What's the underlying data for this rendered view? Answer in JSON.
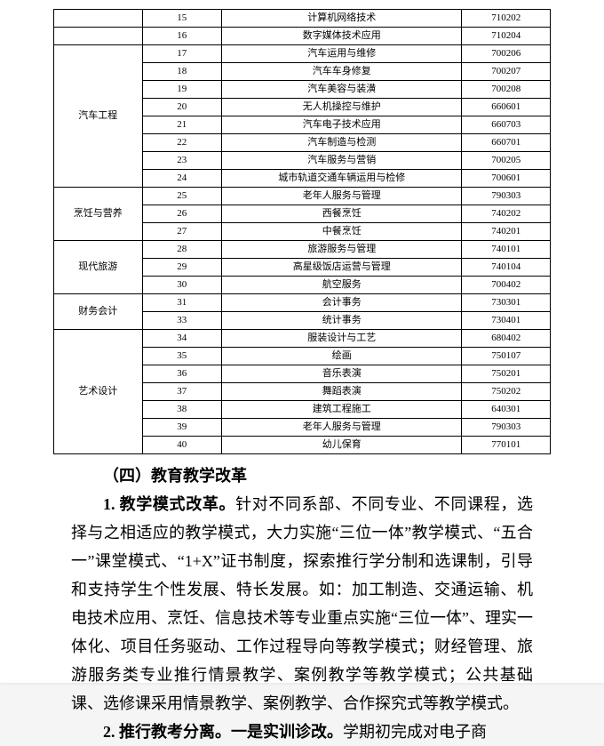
{
  "table": {
    "columns": [
      "category",
      "index",
      "name",
      "code"
    ],
    "cell_fontsize": 11,
    "border_color": "#000000",
    "background_color": "#ffffff",
    "rows": [
      {
        "cat": "",
        "idx": "15",
        "name": "计算机网络技术",
        "code": "710202"
      },
      {
        "cat": "",
        "idx": "16",
        "name": "数字媒体技术应用",
        "code": "710204"
      },
      {
        "cat": "汽车工程",
        "span": 8,
        "idx": "17",
        "name": "汽车运用与维修",
        "code": "700206"
      },
      {
        "cat": null,
        "idx": "18",
        "name": "汽车车身修复",
        "code": "700207"
      },
      {
        "cat": null,
        "idx": "19",
        "name": "汽车美容与装潢",
        "code": "700208"
      },
      {
        "cat": null,
        "idx": "20",
        "name": "无人机操控与维护",
        "code": "660601"
      },
      {
        "cat": null,
        "idx": "21",
        "name": "汽车电子技术应用",
        "code": "660703"
      },
      {
        "cat": null,
        "idx": "22",
        "name": "汽车制造与检测",
        "code": "660701"
      },
      {
        "cat": null,
        "idx": "23",
        "name": "汽车服务与营销",
        "code": "700205"
      },
      {
        "cat": null,
        "idx": "24",
        "name": "城市轨道交通车辆运用与检修",
        "code": "700601"
      },
      {
        "cat": "烹饪与营养",
        "span": 3,
        "idx": "25",
        "name": "老年人服务与管理",
        "code": "790303"
      },
      {
        "cat": null,
        "idx": "26",
        "name": "西餐烹饪",
        "code": "740202"
      },
      {
        "cat": null,
        "idx": "27",
        "name": "中餐烹饪",
        "code": "740201"
      },
      {
        "cat": "现代旅游",
        "span": 3,
        "idx": "28",
        "name": "旅游服务与管理",
        "code": "740101"
      },
      {
        "cat": null,
        "idx": "29",
        "name": "高星级饭店运营与管理",
        "code": "740104"
      },
      {
        "cat": null,
        "idx": "30",
        "name": "航空服务",
        "code": "700402"
      },
      {
        "cat": "财务会计",
        "span": 2,
        "idx": "31",
        "name": "会计事务",
        "code": "730301"
      },
      {
        "cat": null,
        "idx": "33",
        "name": "统计事务",
        "code": "730401"
      },
      {
        "cat": "艺术设计",
        "span": 7,
        "idx": "34",
        "name": "服装设计与工艺",
        "code": "680402"
      },
      {
        "cat": null,
        "idx": "35",
        "name": "绘画",
        "code": "750107"
      },
      {
        "cat": null,
        "idx": "36",
        "name": "音乐表演",
        "code": "750201"
      },
      {
        "cat": null,
        "idx": "37",
        "name": "舞蹈表演",
        "code": "750202"
      },
      {
        "cat": null,
        "idx": "38",
        "name": "建筑工程施工",
        "code": "640301"
      },
      {
        "cat": null,
        "idx": "39",
        "name": "老年人服务与管理",
        "code": "790303"
      },
      {
        "cat": null,
        "idx": "40",
        "name": "幼儿保育",
        "code": "770101"
      }
    ]
  },
  "text": {
    "heading": "（四）教育教学改革",
    "p1_bold": "1. 教学模式改革。",
    "p1_body": "针对不同系部、不同专业、不同课程，选择与之相适应的教学模式，大力实施“三位一体”教学模式、“五合一”课堂模式、“1+X”证书制度，探索推行学分制和选课制，引导和支持学生个性发展、特长发展。如：加工制造、交通运输、机电技术应用、烹饪、信息技术等专业重点实施“三位一体”、理实一体化、项目任务驱动、工作过程导向等教学模式；财经管理、旅游服务类专业推行情景教学、案例教学等教学模式；公共基础课、选修课采用情景教学、案例教学、合作探究式等教学模式。",
    "p2_bold": "2. 推行教考分离。一是实训诊改。",
    "p2_body": "学期初完成对电子商"
  },
  "typography": {
    "body_fontsize": 18,
    "body_lineheight": 32,
    "text_indent_em": 2,
    "font_family": "SimSun"
  }
}
